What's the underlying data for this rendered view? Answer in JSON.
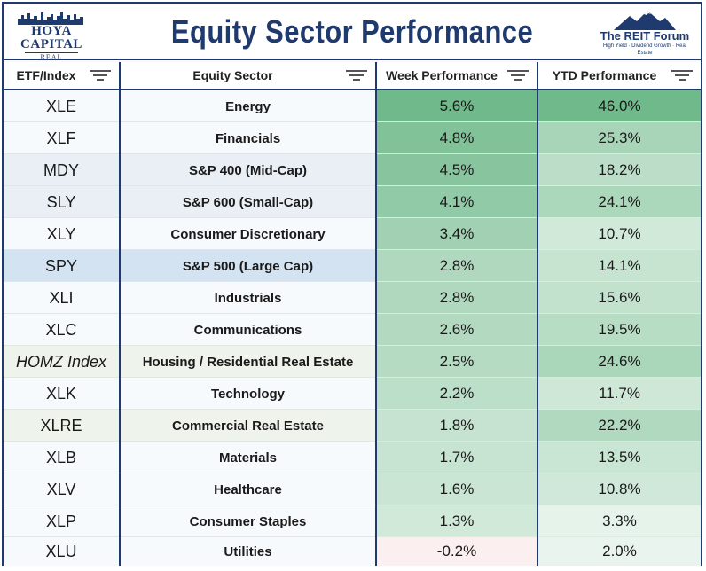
{
  "header": {
    "title": "Equity Sector Performance",
    "logo_left": {
      "line1": "HOYA CAPITAL",
      "line2": "REAL ESTATE"
    },
    "logo_right": {
      "line1": "The REIT Forum",
      "line2": "High Yield · Dividend Growth · Real Estate"
    }
  },
  "columns": [
    {
      "label": "ETF/Index"
    },
    {
      "label": "Equity Sector"
    },
    {
      "label": "Week Performance"
    },
    {
      "label": "YTD Performance"
    }
  ],
  "colors": {
    "navy": "#1f3a6e",
    "green_strong": "#6fb98a",
    "green_light": "#eef7f1",
    "negative": "#fcefef",
    "highlight_spy": "#d4e3f2",
    "highlight_mdy": "#e9eff4"
  },
  "chart_data": {
    "type": "table",
    "title": "Equity Sector Performance",
    "columns": [
      "ETF/Index",
      "Equity Sector",
      "Week Performance",
      "YTD Performance"
    ],
    "rows": [
      {
        "etf": "XLE",
        "sector": "Energy",
        "week": "5.6%",
        "ytd": "46.0%",
        "week_val": 5.6,
        "ytd_val": 46.0
      },
      {
        "etf": "XLF",
        "sector": "Financials",
        "week": "4.8%",
        "ytd": "25.3%",
        "week_val": 4.8,
        "ytd_val": 25.3
      },
      {
        "etf": "MDY",
        "sector": "S&P 400 (Mid-Cap)",
        "week": "4.5%",
        "ytd": "18.2%",
        "week_val": 4.5,
        "ytd_val": 18.2,
        "highlight": "mdy"
      },
      {
        "etf": "SLY",
        "sector": "S&P 600 (Small-Cap)",
        "week": "4.1%",
        "ytd": "24.1%",
        "week_val": 4.1,
        "ytd_val": 24.1,
        "highlight": "mdy"
      },
      {
        "etf": "XLY",
        "sector": "Consumer Discretionary",
        "week": "3.4%",
        "ytd": "10.7%",
        "week_val": 3.4,
        "ytd_val": 10.7
      },
      {
        "etf": "SPY",
        "sector": "S&P 500 (Large Cap)",
        "week": "2.8%",
        "ytd": "14.1%",
        "week_val": 2.8,
        "ytd_val": 14.1,
        "highlight": "spy"
      },
      {
        "etf": "XLI",
        "sector": "Industrials",
        "week": "2.8%",
        "ytd": "15.6%",
        "week_val": 2.8,
        "ytd_val": 15.6
      },
      {
        "etf": "XLC",
        "sector": "Communications",
        "week": "2.6%",
        "ytd": "19.5%",
        "week_val": 2.6,
        "ytd_val": 19.5
      },
      {
        "etf": "HOMZ Index",
        "sector": "Housing / Residential Real Estate",
        "week": "2.5%",
        "ytd": "24.6%",
        "week_val": 2.5,
        "ytd_val": 24.6,
        "highlight": "re",
        "italic": true
      },
      {
        "etf": "XLK",
        "sector": "Technology",
        "week": "2.2%",
        "ytd": "11.7%",
        "week_val": 2.2,
        "ytd_val": 11.7
      },
      {
        "etf": "XLRE",
        "sector": "Commercial Real Estate",
        "week": "1.8%",
        "ytd": "22.2%",
        "week_val": 1.8,
        "ytd_val": 22.2,
        "highlight": "re"
      },
      {
        "etf": "XLB",
        "sector": "Materials",
        "week": "1.7%",
        "ytd": "13.5%",
        "week_val": 1.7,
        "ytd_val": 13.5
      },
      {
        "etf": "XLV",
        "sector": "Healthcare",
        "week": "1.6%",
        "ytd": "10.8%",
        "week_val": 1.6,
        "ytd_val": 10.8
      },
      {
        "etf": "XLP",
        "sector": "Consumer Staples",
        "week": "1.3%",
        "ytd": "3.3%",
        "week_val": 1.3,
        "ytd_val": 3.3
      },
      {
        "etf": "XLU",
        "sector": "Utilities",
        "week": "-0.2%",
        "ytd": "2.0%",
        "week_val": -0.2,
        "ytd_val": 2.0
      }
    ]
  }
}
